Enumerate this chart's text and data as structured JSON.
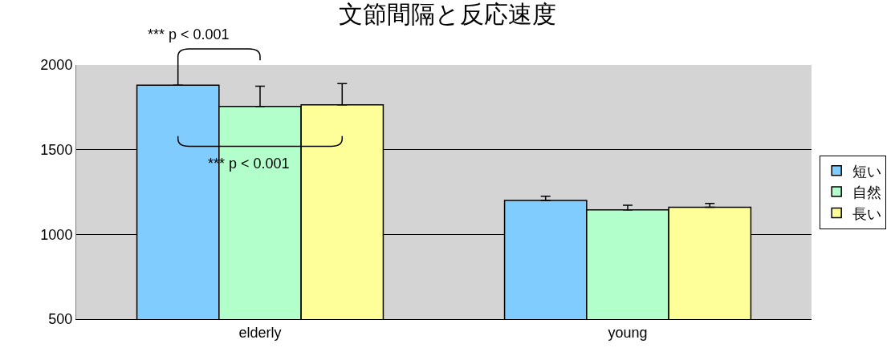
{
  "chart_data": {
    "type": "bar",
    "title": "文節間隔と反応速度",
    "categories": [
      "elderly",
      "young"
    ],
    "series": [
      {
        "name": "短い",
        "color": "#80ccff",
        "values": [
          1880,
          1200
        ],
        "errors": [
          null,
          25
        ]
      },
      {
        "name": "自然",
        "color": "#b3ffcc",
        "values": [
          1755,
          1145
        ],
        "errors": [
          120,
          27
        ]
      },
      {
        "name": "長い",
        "color": "#ffff99",
        "values": [
          1765,
          1160
        ],
        "errors": [
          125,
          23
        ]
      }
    ],
    "ylim": [
      500,
      2000
    ],
    "yticks": [
      500,
      1000,
      1500,
      2000
    ],
    "grid": "y",
    "legend": "right",
    "annotations": [
      "*** p < 0.001",
      "*** p < 0.001"
    ]
  }
}
